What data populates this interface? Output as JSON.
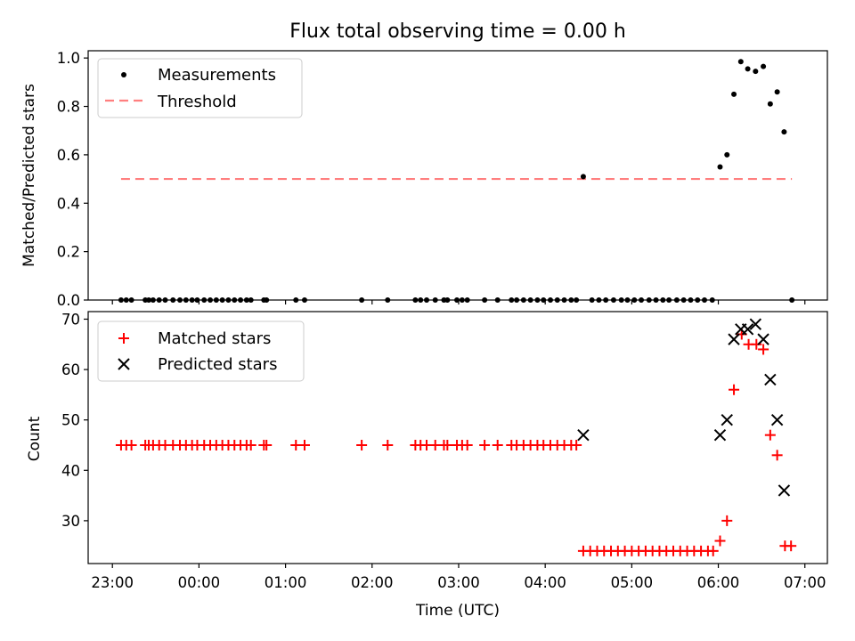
{
  "figure": {
    "title": "Flux total observing time = 0.00 h",
    "xlabel": "Time (UTC)"
  },
  "colors": {
    "measurement": "#000000",
    "threshold": "#ff7f7f",
    "matched": "#ff0000",
    "predicted": "#000000"
  },
  "chart_data": [
    {
      "type": "scatter",
      "panel": "top",
      "ylabel": "Matched/Predicted stars",
      "xlim_hours": [
        -1.28,
        7.26
      ],
      "ylim": [
        0,
        1.03
      ],
      "x_ticks": [
        "23:00",
        "00:00",
        "01:00",
        "02:00",
        "03:00",
        "04:00",
        "05:00",
        "06:00",
        "07:00"
      ],
      "y_ticks": [
        "0.0",
        "0.2",
        "0.4",
        "0.6",
        "0.8",
        "1.0"
      ],
      "legend": {
        "placement": "upper-left",
        "entries": [
          "Measurements",
          "Threshold"
        ]
      },
      "threshold": {
        "name": "Threshold",
        "y": 0.5,
        "x_range_hours": [
          -0.9,
          6.85
        ]
      },
      "series": [
        {
          "name": "Measurements",
          "marker": "dot",
          "x_hours": [
            -0.9,
            -0.84,
            -0.78,
            -0.62,
            -0.58,
            -0.53,
            -0.46,
            -0.39,
            -0.3,
            -0.22,
            -0.15,
            -0.08,
            -0.02,
            0.06,
            0.13,
            0.2,
            0.27,
            0.34,
            0.41,
            0.48,
            0.55,
            0.6,
            0.75,
            0.78,
            1.12,
            1.22,
            1.88,
            2.18,
            2.5,
            2.56,
            2.63,
            2.73,
            2.83,
            2.87,
            2.98,
            3.04,
            3.1,
            3.3,
            3.45,
            3.61,
            3.67,
            3.75,
            3.83,
            3.91,
            3.98,
            4.06,
            4.14,
            4.22,
            4.3,
            4.36,
            4.44,
            4.54,
            4.62,
            4.7,
            4.79,
            4.88,
            4.95,
            5.03,
            5.11,
            5.2,
            5.28,
            5.36,
            5.43,
            5.52,
            5.6,
            5.68,
            5.76,
            5.84,
            5.93,
            6.02,
            6.1,
            6.18,
            6.26,
            6.34,
            6.43,
            6.52,
            6.6,
            6.68,
            6.76,
            6.85
          ],
          "y": [
            0,
            0,
            0,
            0,
            0,
            0,
            0,
            0,
            0,
            0,
            0,
            0,
            0,
            0,
            0,
            0,
            0,
            0,
            0,
            0,
            0,
            0,
            0,
            0,
            0,
            0,
            0,
            0,
            0,
            0,
            0,
            0,
            0,
            0,
            0,
            0,
            0,
            0,
            0,
            0,
            0,
            0,
            0,
            0,
            0,
            0,
            0,
            0,
            0,
            0,
            0.51,
            0,
            0,
            0,
            0,
            0,
            0,
            0,
            0,
            0,
            0,
            0,
            0,
            0,
            0,
            0,
            0,
            0,
            0,
            0.55,
            0.6,
            0.85,
            0.985,
            0.955,
            0.945,
            0.965,
            0.81,
            0.86,
            0.695,
            0
          ]
        }
      ]
    },
    {
      "type": "scatter",
      "panel": "bottom",
      "ylabel": "Count",
      "xlim_hours": [
        -1.28,
        7.26
      ],
      "ylim": [
        21.5,
        71.5
      ],
      "x_ticks": [
        "23:00",
        "00:00",
        "01:00",
        "02:00",
        "03:00",
        "04:00",
        "05:00",
        "06:00",
        "07:00"
      ],
      "y_ticks": [
        "30",
        "40",
        "50",
        "60",
        "70"
      ],
      "legend": {
        "placement": "upper-left",
        "entries": [
          "Matched stars",
          "Predicted stars"
        ]
      },
      "series": [
        {
          "name": "Matched stars",
          "marker": "plus",
          "x_hours": [
            -0.9,
            -0.84,
            -0.78,
            -0.62,
            -0.58,
            -0.53,
            -0.46,
            -0.39,
            -0.3,
            -0.22,
            -0.15,
            -0.08,
            -0.02,
            0.06,
            0.13,
            0.2,
            0.27,
            0.34,
            0.41,
            0.48,
            0.55,
            0.6,
            0.75,
            0.78,
            1.12,
            1.22,
            1.88,
            2.18,
            2.5,
            2.56,
            2.63,
            2.73,
            2.83,
            2.87,
            2.98,
            3.04,
            3.1,
            3.3,
            3.45,
            3.61,
            3.67,
            3.75,
            3.83,
            3.91,
            3.98,
            4.06,
            4.14,
            4.22,
            4.3,
            4.36,
            4.44,
            4.52,
            4.6,
            4.68,
            4.76,
            4.84,
            4.92,
            5.0,
            5.08,
            5.16,
            5.24,
            5.32,
            5.4,
            5.48,
            5.56,
            5.64,
            5.72,
            5.8,
            5.88,
            5.94,
            6.02,
            6.1,
            6.18,
            6.27,
            6.35,
            6.44,
            6.52,
            6.6,
            6.68,
            6.77,
            6.84
          ],
          "y": [
            45,
            45,
            45,
            45,
            45,
            45,
            45,
            45,
            45,
            45,
            45,
            45,
            45,
            45,
            45,
            45,
            45,
            45,
            45,
            45,
            45,
            45,
            45,
            45,
            45,
            45,
            45,
            45,
            45,
            45,
            45,
            45,
            45,
            45,
            45,
            45,
            45,
            45,
            45,
            45,
            45,
            45,
            45,
            45,
            45,
            45,
            45,
            45,
            45,
            45,
            24,
            24,
            24,
            24,
            24,
            24,
            24,
            24,
            24,
            24,
            24,
            24,
            24,
            24,
            24,
            24,
            24,
            24,
            24,
            24,
            26,
            30,
            56,
            67,
            65,
            65,
            64,
            47,
            43,
            25,
            25
          ]
        },
        {
          "name": "Predicted stars",
          "marker": "x",
          "x_hours": [
            4.44,
            6.02,
            6.1,
            6.18,
            6.26,
            6.34,
            6.43,
            6.52,
            6.6,
            6.68,
            6.76
          ],
          "y": [
            47,
            47,
            50,
            66,
            68,
            68,
            69,
            66,
            58,
            50,
            36
          ]
        }
      ]
    }
  ]
}
